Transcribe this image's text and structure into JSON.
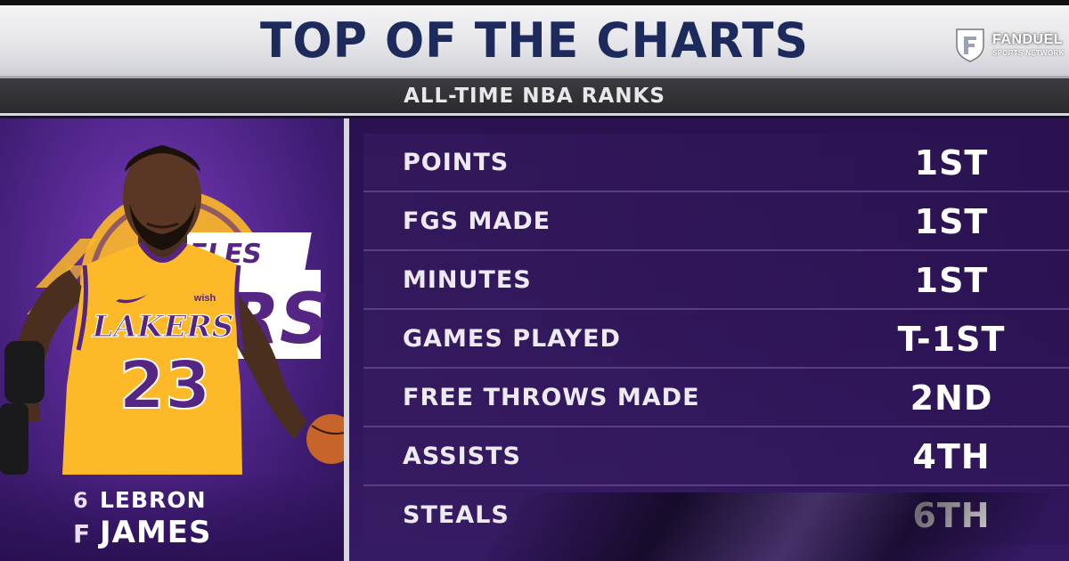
{
  "header": {
    "title": "TOP OF THE CHARTS",
    "subtitle": "ALL-TIME NBA RANKS"
  },
  "brand": {
    "name": "FANDUEL",
    "sub": "SPORTS NETWORK",
    "icon": "fanduel-shield-icon"
  },
  "player": {
    "number": "6",
    "position": "F",
    "first_name": "LEBRON",
    "last_name": "JAMES",
    "jersey_team": "LAKERS",
    "jersey_number": "23",
    "jersey_patch": "wish",
    "logo_text": "GELES",
    "logo_partial": "RS"
  },
  "stats": [
    {
      "label": "POINTS",
      "rank": "1ST"
    },
    {
      "label": "FGS MADE",
      "rank": "1ST"
    },
    {
      "label": "MINUTES",
      "rank": "1ST"
    },
    {
      "label": "GAMES PLAYED",
      "rank": "T-1ST"
    },
    {
      "label": "FREE THROWS MADE",
      "rank": "2ND"
    },
    {
      "label": "ASSISTS",
      "rank": "4TH"
    },
    {
      "label": "STEALS",
      "rank": "6TH"
    }
  ],
  "colors": {
    "title": "#1d2a5c",
    "purple": "#552583",
    "gold": "#fdb927"
  }
}
